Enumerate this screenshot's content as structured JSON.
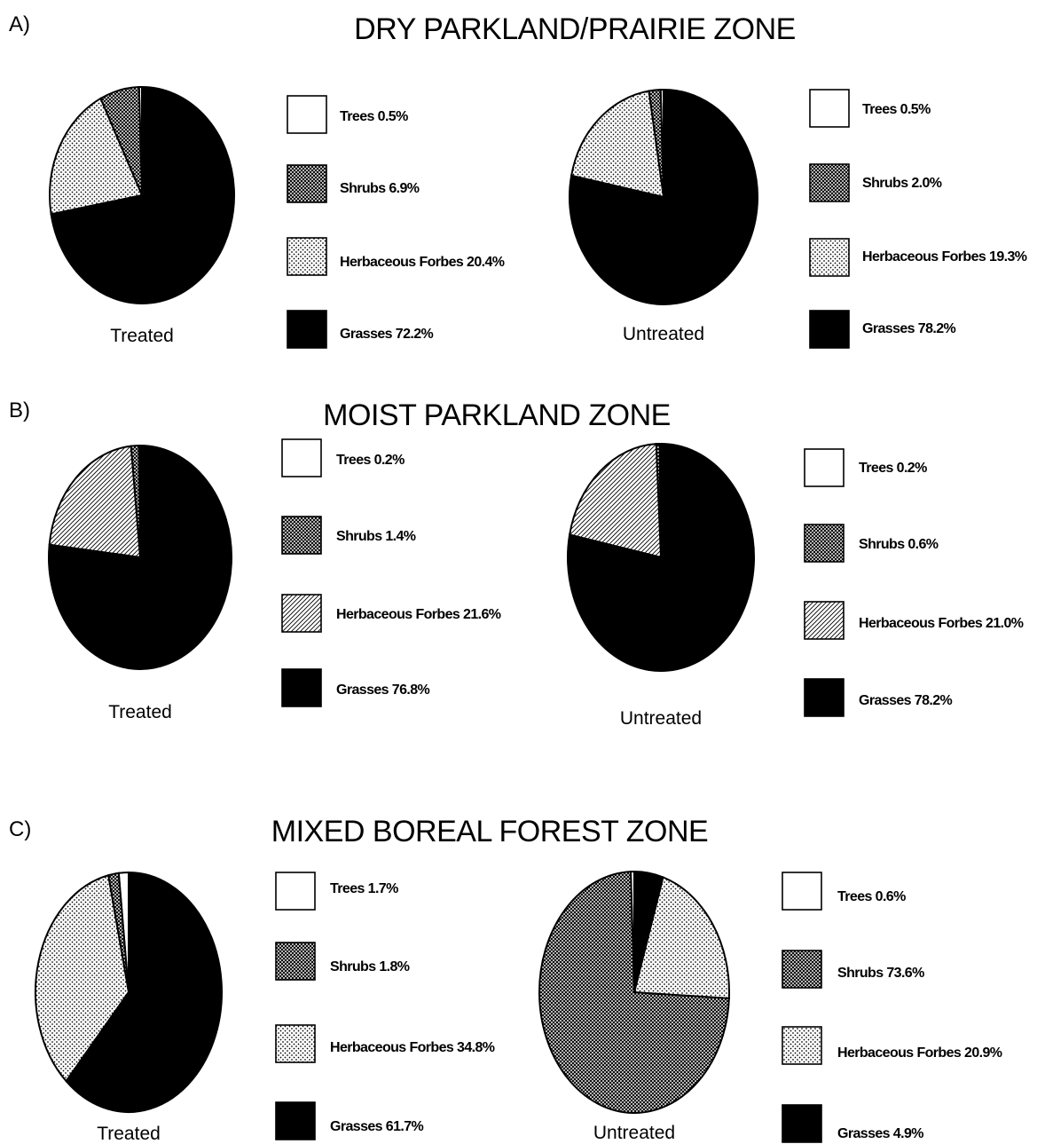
{
  "chart_data": [
    {
      "panel": "A)",
      "title": "DRY PARKLAND/PRAIRIE ZONE",
      "charts": [
        {
          "type": "pie",
          "label": "Treated",
          "slices": [
            {
              "name": "Trees",
              "value": 0.5,
              "text": "Trees 0.5%"
            },
            {
              "name": "Shrubs",
              "value": 6.9,
              "text": "Shrubs 6.9%"
            },
            {
              "name": "Herbaceous Forbes",
              "value": 20.4,
              "text": "Herbaceous Forbes 20.4%"
            },
            {
              "name": "Grasses",
              "value": 72.2,
              "text": "Grasses 72.2%"
            }
          ]
        },
        {
          "type": "pie",
          "label": "Untreated",
          "slices": [
            {
              "name": "Trees",
              "value": 0.5,
              "text": "Trees 0.5%"
            },
            {
              "name": "Shrubs",
              "value": 2.0,
              "text": "Shrubs 2.0%"
            },
            {
              "name": "Herbaceous Forbes",
              "value": 19.3,
              "text": "Herbaceous Forbes 19.3%"
            },
            {
              "name": "Grasses",
              "value": 78.2,
              "text": "Grasses 78.2%"
            }
          ]
        }
      ]
    },
    {
      "panel": "B)",
      "title": "MOIST PARKLAND ZONE",
      "charts": [
        {
          "type": "pie",
          "label": "Treated",
          "slices": [
            {
              "name": "Trees",
              "value": 0.2,
              "text": "Trees 0.2%"
            },
            {
              "name": "Shrubs",
              "value": 1.4,
              "text": "Shrubs 1.4%"
            },
            {
              "name": "Herbaceous Forbes",
              "value": 21.6,
              "text": "Herbaceous Forbes 21.6%"
            },
            {
              "name": "Grasses",
              "value": 76.8,
              "text": "Grasses 76.8%"
            }
          ]
        },
        {
          "type": "pie",
          "label": "Untreated",
          "slices": [
            {
              "name": "Trees",
              "value": 0.2,
              "text": "Trees 0.2%"
            },
            {
              "name": "Shrubs",
              "value": 0.6,
              "text": "Shrubs 0.6%"
            },
            {
              "name": "Herbaceous Forbes",
              "value": 21.0,
              "text": "Herbaceous Forbes 21.0%"
            },
            {
              "name": "Grasses",
              "value": 78.2,
              "text": "Grasses 78.2%"
            }
          ]
        }
      ]
    },
    {
      "panel": "C)",
      "title": "MIXED BOREAL FOREST ZONE",
      "charts": [
        {
          "type": "pie",
          "label": "Treated",
          "slices": [
            {
              "name": "Trees",
              "value": 1.7,
              "text": "Trees 1.7%"
            },
            {
              "name": "Shrubs",
              "value": 1.8,
              "text": "Shrubs 1.8%"
            },
            {
              "name": "Herbaceous Forbes",
              "value": 34.8,
              "text": "Herbaceous Forbes 34.8%"
            },
            {
              "name": "Grasses",
              "value": 61.7,
              "text": "Grasses 61.7%"
            }
          ]
        },
        {
          "type": "pie",
          "label": "Untreated",
          "slices": [
            {
              "name": "Trees",
              "value": 0.6,
              "text": "Trees 0.6%"
            },
            {
              "name": "Shrubs",
              "value": 73.6,
              "text": "Shrubs 73.6%"
            },
            {
              "name": "Herbaceous Forbes",
              "value": 20.9,
              "text": "Herbaceous Forbes 20.9%"
            },
            {
              "name": "Grasses",
              "value": 4.9,
              "text": "Grasses 4.9%"
            }
          ]
        }
      ]
    }
  ],
  "fills": {
    "Trees": "#ffffff",
    "Shrubs": "crosshatch-pattern",
    "Herbaceous Forbes": "stipple-pattern",
    "Grasses": "#000000"
  }
}
